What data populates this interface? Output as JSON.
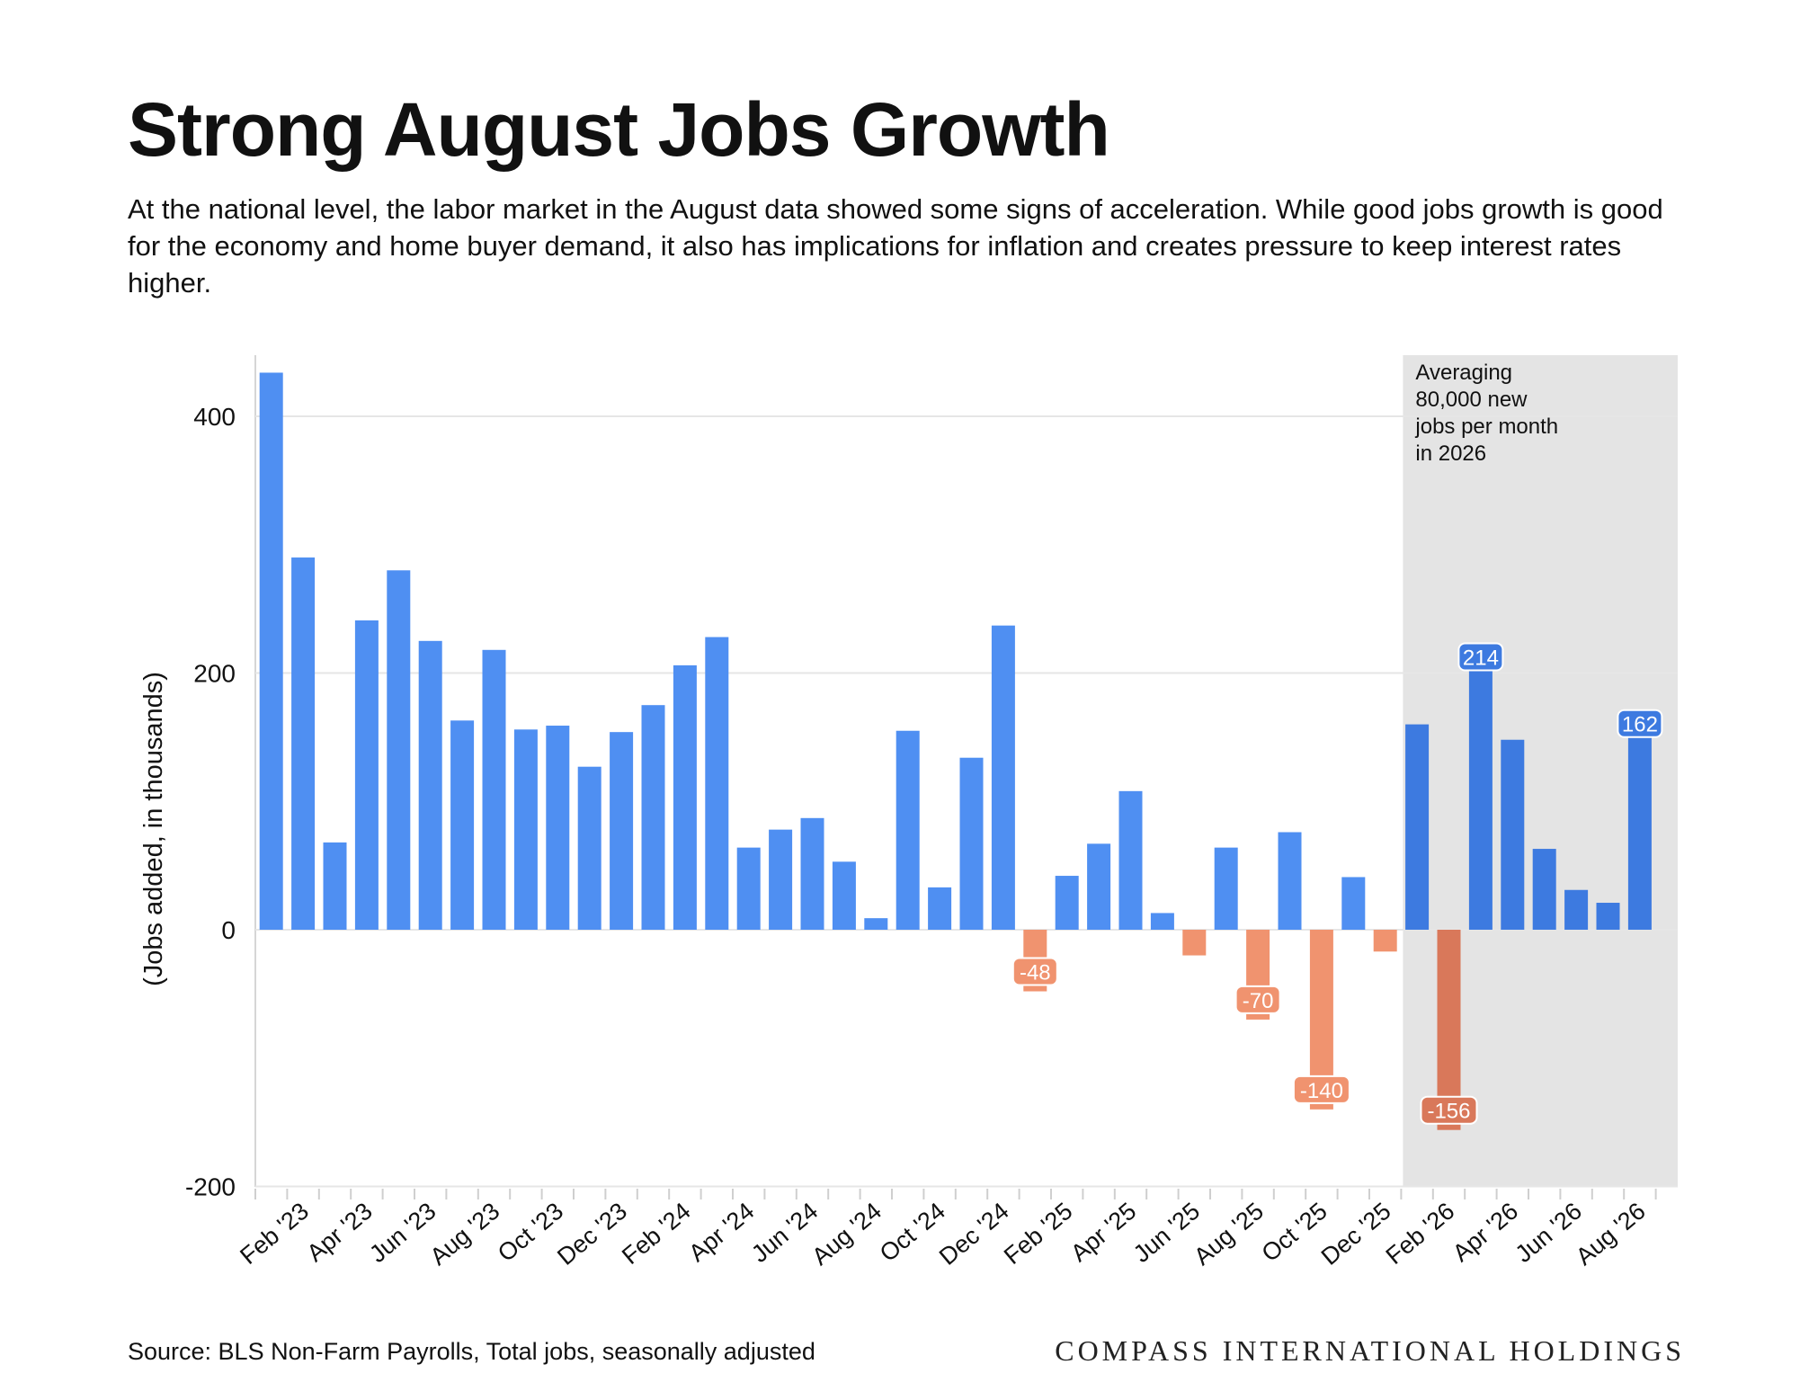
{
  "header": {
    "title": "Strong August Jobs Growth",
    "subtitle": "At the national level, the labor market in the August data showed some signs of acceleration. While good jobs growth is good for the economy and home buyer demand, it also has implications for inflation and creates pressure to keep interest rates higher."
  },
  "footer": {
    "source": "Source: BLS Non-Farm Payrolls, Total jobs, seasonally adjusted",
    "brand": "COMPASS INTERNATIONAL HOLDINGS"
  },
  "colors": {
    "positive": "#4f8ff2",
    "negative": "#f0936f",
    "positive_dark": "#3d7ae0",
    "negative_dark": "#d9785a",
    "shade": "#e4e4e4",
    "grid": "#e6e6e6"
  },
  "chart_data": {
    "type": "bar",
    "title": "Strong August Jobs Growth",
    "ylabel": "(Jobs added, in thousands)",
    "xlabel": "",
    "ylim": [
      -200,
      440
    ],
    "yticks": [
      -200,
      0,
      200,
      400
    ],
    "grid": true,
    "categories": [
      "Jan '23",
      "Feb '23",
      "Mar '23",
      "Apr '23",
      "May '23",
      "Jun '23",
      "Jul '23",
      "Aug '23",
      "Sep '23",
      "Oct '23",
      "Nov '23",
      "Dec '23",
      "Jan '24",
      "Feb '24",
      "Mar '24",
      "Apr '24",
      "May '24",
      "Jun '24",
      "Jul '24",
      "Aug '24",
      "Sep '24",
      "Oct '24",
      "Nov '24",
      "Dec '24",
      "Jan '25",
      "Feb '25",
      "Mar '25",
      "Apr '25",
      "May '25",
      "Jun '25",
      "Jul '25",
      "Aug '25",
      "Sep '25",
      "Oct '25",
      "Nov '25",
      "Dec '25",
      "Jan '26",
      "Feb '26",
      "Mar '26",
      "Apr '26",
      "May '26",
      "Jun '26",
      "Jul '26",
      "Aug '26"
    ],
    "tick_labels": [
      "",
      "Feb '23",
      "",
      "Apr '23",
      "",
      "Jun '23",
      "",
      "Aug '23",
      "",
      "Oct '23",
      "",
      "Dec '23",
      "",
      "Feb '24",
      "",
      "Apr '24",
      "",
      "Jun '24",
      "",
      "Aug '24",
      "",
      "Oct '24",
      "",
      "Dec '24",
      "",
      "Feb '25",
      "",
      "Apr '25",
      "",
      "Jun '25",
      "",
      "Aug '25",
      "",
      "Oct '25",
      "",
      "Dec '25",
      "",
      "Feb '26",
      "",
      "Apr '26",
      "",
      "Jun '26",
      "",
      "Aug '26"
    ],
    "values": [
      434,
      290,
      68,
      241,
      280,
      225,
      163,
      218,
      156,
      159,
      127,
      154,
      175,
      206,
      228,
      64,
      78,
      87,
      53,
      9,
      155,
      33,
      134,
      237,
      -48,
      42,
      67,
      108,
      13,
      -20,
      64,
      -70,
      76,
      -140,
      41,
      -17,
      160,
      -156,
      214,
      148,
      63,
      31,
      21,
      162
    ],
    "data_labels": {
      "24": "-48",
      "31": "-70",
      "33": "-140",
      "37": "-156",
      "38": "214",
      "43": "162"
    },
    "highlight": {
      "start_index": 36,
      "end_index": 43
    },
    "annotation": [
      "Averaging",
      "80,000 new",
      "jobs per month",
      "in 2026"
    ]
  }
}
